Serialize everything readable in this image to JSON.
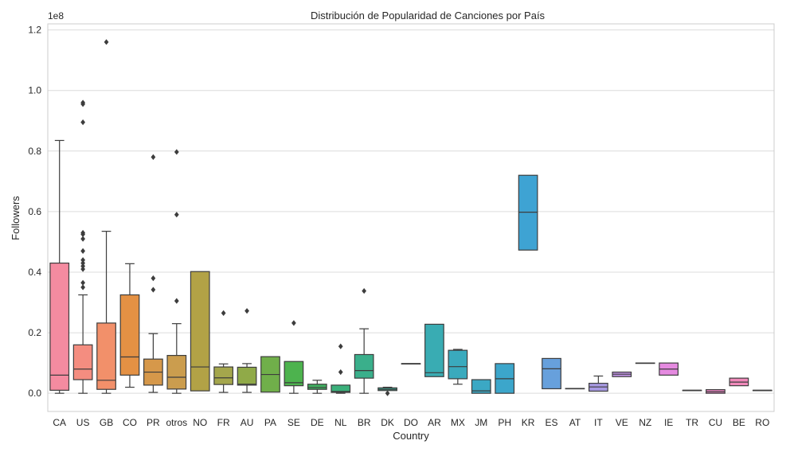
{
  "chart_data": {
    "type": "box",
    "title": "Distribución de Popularidad de Canciones por País",
    "xlabel": "Country",
    "ylabel": "Followers",
    "y_scale_label": "1e8",
    "ylim": [
      -0.06,
      1.22
    ],
    "y_ticks": [
      0.0,
      0.2,
      0.4,
      0.6,
      0.8,
      1.0,
      1.2
    ],
    "y_tick_labels": [
      "0.0",
      "0.2",
      "0.4",
      "0.6",
      "0.8",
      "1.0",
      "1.2"
    ],
    "grid": true,
    "categories": [
      {
        "label": "CA",
        "color": "#f48ba0",
        "min": 0.0,
        "q1": 0.01,
        "median": 0.06,
        "q3": 0.43,
        "max": 0.835,
        "outliers": []
      },
      {
        "label": "US",
        "color": "#f48d80",
        "min": 0.0,
        "q1": 0.045,
        "median": 0.08,
        "q3": 0.16,
        "max": 0.325,
        "outliers": [
          0.35,
          0.365,
          0.41,
          0.42,
          0.43,
          0.44,
          0.47,
          0.51,
          0.525,
          0.53,
          0.895,
          0.955,
          0.96
        ]
      },
      {
        "label": "GB",
        "color": "#f2906a",
        "min": 0.0,
        "q1": 0.013,
        "median": 0.043,
        "q3": 0.232,
        "max": 0.535,
        "outliers": [
          1.16
        ]
      },
      {
        "label": "CO",
        "color": "#e49144",
        "min": 0.02,
        "q1": 0.06,
        "median": 0.12,
        "q3": 0.325,
        "max": 0.428,
        "outliers": []
      },
      {
        "label": "PR",
        "color": "#d6984a",
        "min": 0.003,
        "q1": 0.027,
        "median": 0.07,
        "q3": 0.113,
        "max": 0.197,
        "outliers": [
          0.342,
          0.38,
          0.78
        ]
      },
      {
        "label": "otros",
        "color": "#cb9d4e",
        "min": 0.0,
        "q1": 0.014,
        "median": 0.053,
        "q3": 0.125,
        "max": 0.23,
        "outliers": [
          0.305,
          0.59,
          0.797
        ]
      },
      {
        "label": "NO",
        "color": "#b2a246",
        "min": 0.008,
        "q1": 0.008,
        "median": 0.087,
        "q3": 0.402,
        "max": 0.402,
        "outliers": []
      },
      {
        "label": "FR",
        "color": "#a4a64c",
        "min": 0.003,
        "q1": 0.029,
        "median": 0.051,
        "q3": 0.087,
        "max": 0.097,
        "outliers": [
          0.265
        ]
      },
      {
        "label": "AU",
        "color": "#90aa48",
        "min": 0.003,
        "q1": 0.027,
        "median": 0.03,
        "q3": 0.086,
        "max": 0.098,
        "outliers": [
          0.272
        ]
      },
      {
        "label": "PA",
        "color": "#70af4a",
        "min": 0.004,
        "q1": 0.004,
        "median": 0.062,
        "q3": 0.121,
        "max": 0.121,
        "outliers": []
      },
      {
        "label": "SE",
        "color": "#4db34e",
        "min": 0.0,
        "q1": 0.025,
        "median": 0.035,
        "q3": 0.105,
        "max": 0.105,
        "outliers": [
          0.232
        ]
      },
      {
        "label": "DE",
        "color": "#40b060",
        "min": 0.0,
        "q1": 0.013,
        "median": 0.019,
        "q3": 0.03,
        "max": 0.043,
        "outliers": []
      },
      {
        "label": "NL",
        "color": "#3bb07b",
        "min": 0.0,
        "q1": 0.003,
        "median": 0.006,
        "q3": 0.027,
        "max": 0.027,
        "outliers": [
          0.07,
          0.155
        ]
      },
      {
        "label": "BR",
        "color": "#3aaf8b",
        "min": 0.0,
        "q1": 0.05,
        "median": 0.075,
        "q3": 0.128,
        "max": 0.213,
        "outliers": [
          0.338
        ]
      },
      {
        "label": "DK",
        "color": "#3aae98",
        "min": 0.009,
        "q1": 0.009,
        "median": 0.013,
        "q3": 0.018,
        "max": 0.02,
        "outliers": [
          0.0
        ]
      },
      {
        "label": "DO",
        "color": "#38ada5",
        "min": 0.098,
        "q1": 0.098,
        "median": 0.098,
        "q3": 0.098,
        "max": 0.098,
        "outliers": []
      },
      {
        "label": "AR",
        "color": "#39acb3",
        "min": 0.055,
        "q1": 0.055,
        "median": 0.068,
        "q3": 0.228,
        "max": 0.228,
        "outliers": []
      },
      {
        "label": "MX",
        "color": "#3aaabd",
        "min": 0.03,
        "q1": 0.048,
        "median": 0.088,
        "q3": 0.142,
        "max": 0.145,
        "outliers": []
      },
      {
        "label": "JM",
        "color": "#3ba8c4",
        "min": 0.0,
        "q1": 0.0,
        "median": 0.008,
        "q3": 0.045,
        "max": 0.045,
        "outliers": []
      },
      {
        "label": "PH",
        "color": "#3ca6cb",
        "min": 0.0,
        "q1": 0.0,
        "median": 0.048,
        "q3": 0.098,
        "max": 0.098,
        "outliers": []
      },
      {
        "label": "KR",
        "color": "#3ea3d3",
        "min": 0.473,
        "q1": 0.473,
        "median": 0.598,
        "q3": 0.72,
        "max": 0.72,
        "outliers": []
      },
      {
        "label": "ES",
        "color": "#67a0dc",
        "min": 0.015,
        "q1": 0.015,
        "median": 0.081,
        "q3": 0.115,
        "max": 0.115,
        "outliers": []
      },
      {
        "label": "AT",
        "color": "#8e9cdf",
        "min": 0.016,
        "q1": 0.016,
        "median": 0.016,
        "q3": 0.016,
        "max": 0.016,
        "outliers": []
      },
      {
        "label": "IT",
        "color": "#a89ae3",
        "min": 0.007,
        "q1": 0.007,
        "median": 0.021,
        "q3": 0.033,
        "max": 0.057,
        "outliers": []
      },
      {
        "label": "VE",
        "color": "#c193e6",
        "min": 0.055,
        "q1": 0.055,
        "median": 0.063,
        "q3": 0.07,
        "max": 0.07,
        "outliers": []
      },
      {
        "label": "NZ",
        "color": "#d48de6",
        "min": 0.1,
        "q1": 0.1,
        "median": 0.1,
        "q3": 0.1,
        "max": 0.1,
        "outliers": []
      },
      {
        "label": "IE",
        "color": "#e58ae0",
        "min": 0.06,
        "q1": 0.06,
        "median": 0.08,
        "q3": 0.1,
        "max": 0.1,
        "outliers": []
      },
      {
        "label": "TR",
        "color": "#ec89d4",
        "min": 0.01,
        "q1": 0.01,
        "median": 0.01,
        "q3": 0.01,
        "max": 0.01,
        "outliers": []
      },
      {
        "label": "CU",
        "color": "#ef89c7",
        "min": 0.0,
        "q1": 0.0,
        "median": 0.005,
        "q3": 0.012,
        "max": 0.012,
        "outliers": []
      },
      {
        "label": "BE",
        "color": "#f089ba",
        "min": 0.025,
        "q1": 0.025,
        "median": 0.037,
        "q3": 0.05,
        "max": 0.05,
        "outliers": []
      },
      {
        "label": "RO",
        "color": "#f18aae",
        "min": 0.01,
        "q1": 0.01,
        "median": 0.01,
        "q3": 0.01,
        "max": 0.01,
        "outliers": []
      }
    ]
  }
}
